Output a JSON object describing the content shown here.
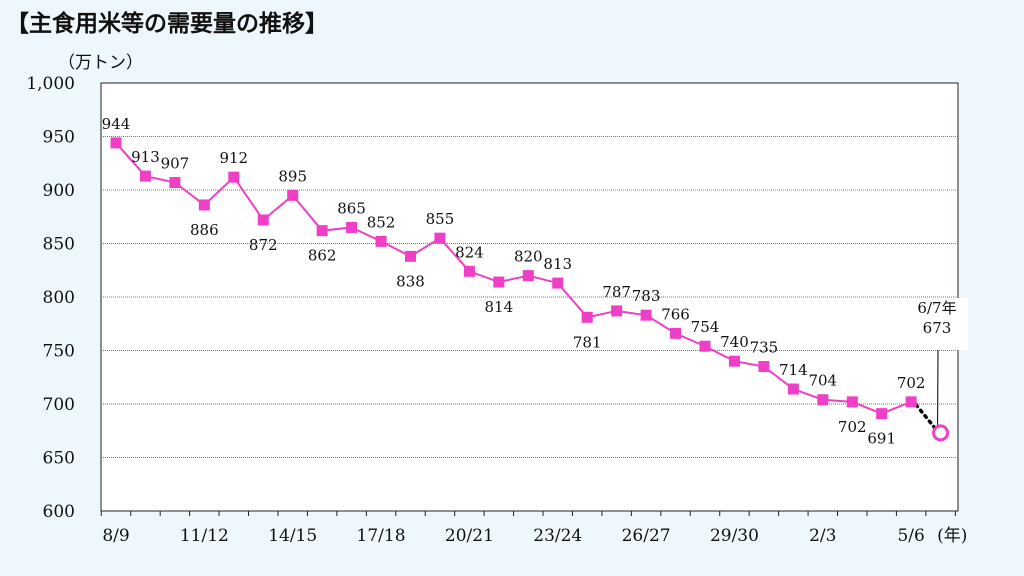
{
  "page": {
    "title": "【主食用米等の需要量の推移】",
    "unit_label": "（万トン）"
  },
  "chart_data": {
    "type": "line",
    "title": "【主食用米等の需要量の推移】",
    "ylabel": "（万トン）",
    "xlabel": "(年)",
    "ylim": [
      600,
      1000
    ],
    "y_ticks": [
      "600",
      "650",
      "700",
      "750",
      "800",
      "850",
      "900",
      "950",
      "1,000"
    ],
    "x_tick_labels": [
      {
        "index": 0,
        "text": "8/9"
      },
      {
        "index": 3,
        "text": "11/12"
      },
      {
        "index": 6,
        "text": "14/15"
      },
      {
        "index": 9,
        "text": "17/18"
      },
      {
        "index": 12,
        "text": "20/21"
      },
      {
        "index": 15,
        "text": "23/24"
      },
      {
        "index": 18,
        "text": "26/27"
      },
      {
        "index": 21,
        "text": "29/30"
      },
      {
        "index": 24,
        "text": "2/3"
      },
      {
        "index": 27,
        "text": "5/6"
      }
    ],
    "x_unit_label": "(年)",
    "grid": true,
    "series": [
      {
        "values": [
          944,
          913,
          907,
          886,
          912,
          872,
          895,
          862,
          865,
          852,
          838,
          855,
          824,
          814,
          820,
          813,
          781,
          787,
          783,
          766,
          754,
          740,
          735,
          714,
          704,
          702,
          691,
          702
        ],
        "labels": [
          "944",
          "913",
          "907",
          "886",
          "912",
          "872",
          "895",
          "862",
          "865",
          "852",
          "838",
          "855",
          "824",
          "814",
          "820",
          "813",
          "781",
          "787",
          "783",
          "766",
          "754",
          "740",
          "735",
          "714",
          "704",
          "702",
          "691",
          "702"
        ],
        "color": "#ee3fc6"
      }
    ],
    "forecast": {
      "value": 673,
      "label_year": "6/7年",
      "label_value": "673",
      "color": "#ee3fc6"
    }
  }
}
